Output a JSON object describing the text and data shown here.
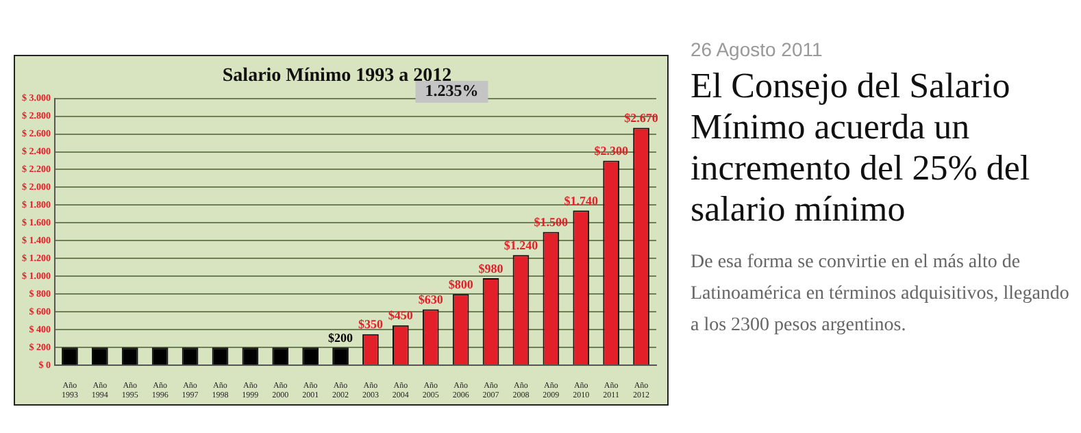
{
  "chart_data": {
    "type": "bar",
    "title": "Salario Mínimo 1993 a 2012",
    "categories": [
      "Año 1993",
      "Año 1994",
      "Año 1995",
      "Año 1996",
      "Año 1997",
      "Año 1998",
      "Año 1999",
      "Año 2000",
      "Año 2001",
      "Año 2002",
      "Año 2003",
      "Año 2004",
      "Año 2005",
      "Año 2006",
      "Año 2007",
      "Año 2008",
      "Año 2009",
      "Año 2010",
      "Año 2011",
      "Año 2012"
    ],
    "values": [
      200,
      200,
      200,
      200,
      200,
      200,
      200,
      200,
      200,
      200,
      350,
      450,
      630,
      800,
      980,
      1240,
      1500,
      1740,
      2300,
      2670
    ],
    "colors": [
      "#000000",
      "#000000",
      "#000000",
      "#000000",
      "#000000",
      "#000000",
      "#000000",
      "#000000",
      "#000000",
      "#000000",
      "#e3202a",
      "#e3202a",
      "#e3202a",
      "#e3202a",
      "#e3202a",
      "#e3202a",
      "#e3202a",
      "#e3202a",
      "#e3202a",
      "#e3202a"
    ],
    "value_labels": [
      null,
      null,
      null,
      null,
      null,
      null,
      null,
      null,
      null,
      "$200",
      "$350",
      "$450",
      "$630",
      "$800",
      "$980",
      "$1.240",
      "$1.500",
      "$1.740",
      "$2.300",
      "$2.670"
    ],
    "ylim": [
      0,
      3000
    ],
    "yticks": [
      {
        "value": 0,
        "label": "$ 0"
      },
      {
        "value": 200,
        "label": "$ 200"
      },
      {
        "value": 400,
        "label": "$ 400"
      },
      {
        "value": 600,
        "label": "$ 600"
      },
      {
        "value": 800,
        "label": "$ 800"
      },
      {
        "value": 1000,
        "label": "$ 1.000"
      },
      {
        "value": 1200,
        "label": "$ 1.200"
      },
      {
        "value": 1400,
        "label": "$ 1.400"
      },
      {
        "value": 1600,
        "label": "$ 1.600"
      },
      {
        "value": 1800,
        "label": "$ 1.800"
      },
      {
        "value": 2000,
        "label": "$ 2.000"
      },
      {
        "value": 2200,
        "label": "$ 2.200"
      },
      {
        "value": 2400,
        "label": "$ 2.400"
      },
      {
        "value": 2600,
        "label": "$ 2.600"
      },
      {
        "value": 2800,
        "label": "$ 2.800"
      },
      {
        "value": 3000,
        "label": "$ 3.000"
      }
    ],
    "grid": "y",
    "legend": false,
    "annotations": [
      "1.235%",
      "26 Agosto 2011",
      "El Consejo del Salario Mínimo acuerda un incremento del 25% del salario mínimo",
      "De esa forma se convirtie en el más alto de Latinoamérica en términos adquisitivos, llegando a los 2300 pesos argentinos."
    ]
  }
}
